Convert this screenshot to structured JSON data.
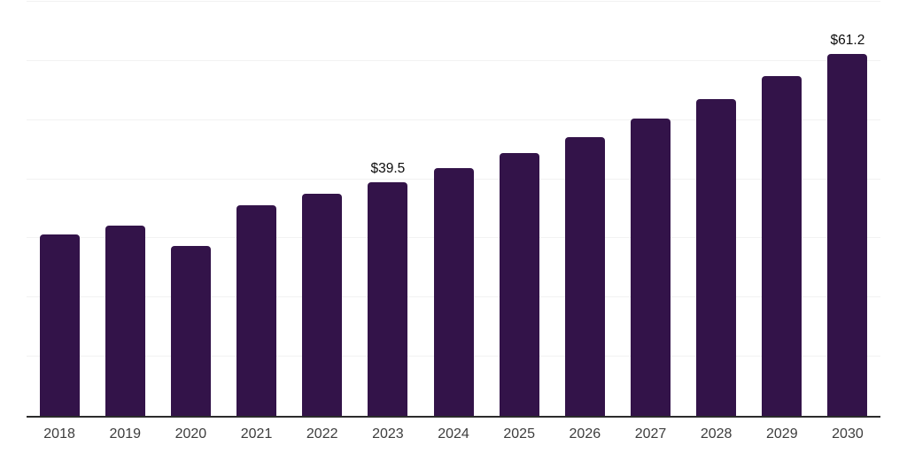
{
  "chart_data": {
    "type": "bar",
    "title": "",
    "categories": [
      "2018",
      "2019",
      "2020",
      "2021",
      "2022",
      "2023",
      "2024",
      "2025",
      "2026",
      "2027",
      "2028",
      "2029",
      "2030"
    ],
    "values": [
      30.7,
      32.2,
      28.8,
      35.6,
      37.5,
      39.5,
      41.9,
      44.5,
      47.1,
      50.3,
      53.6,
      57.4,
      61.2
    ],
    "data_labels": {
      "2023": "$39.5",
      "2030": "$61.2"
    },
    "xlabel": "",
    "ylabel": "",
    "ylim": [
      0,
      70
    ],
    "gridline_step": 10,
    "grid": true,
    "y_axis_labels_visible": false,
    "legend": "none",
    "colors": {
      "bar": "#331349",
      "gridline": "#f2f2f2",
      "axis_line": "#2b2b2b",
      "x_tick_label": "#3d3d3d",
      "data_label": "#0d0d0d",
      "background": "#ffffff"
    }
  }
}
